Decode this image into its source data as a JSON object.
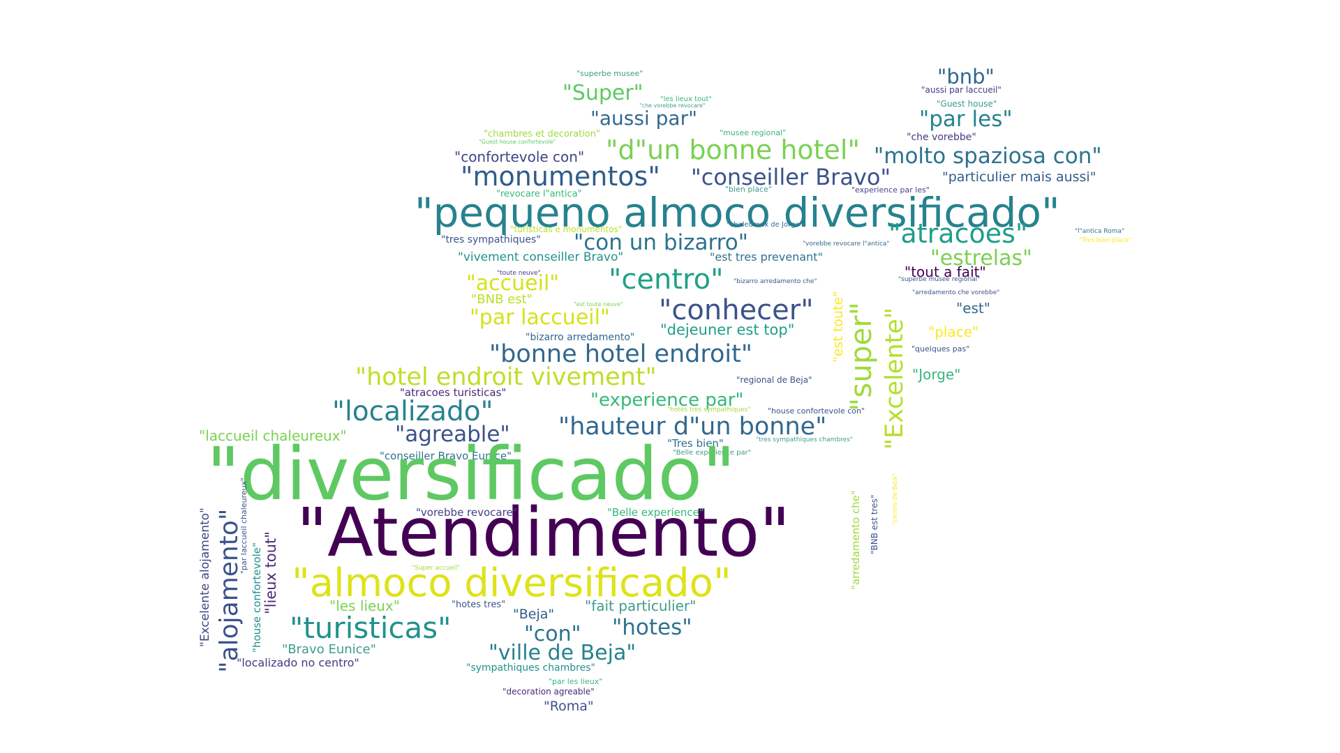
{
  "words": [
    {
      "text": "\"superbe musee\"",
      "color": "#3e9c8a"
    },
    {
      "text": "\"Super\"",
      "color": "#5ec962"
    },
    {
      "text": "\"les lieux tout\"",
      "color": "#35b779"
    },
    {
      "text": "\"che vorebbe revocare\"",
      "color": "#3e9c8a"
    },
    {
      "text": "\"aussi par\"",
      "color": "#31688e"
    },
    {
      "text": "\"chambres et decoration\"",
      "color": "#a0da39"
    },
    {
      "text": "\"musee regional\"",
      "color": "#35b779"
    },
    {
      "text": "\"Guest house confortevole\"",
      "color": "#5ec962"
    },
    {
      "text": "\"d\"un bonne hotel\"",
      "color": "#7ad151"
    },
    {
      "text": "\"confortevole con\"",
      "color": "#414487"
    },
    {
      "text": "\"monumentos\"",
      "color": "#2f5c8a"
    },
    {
      "text": "\"conseiller Bravo\"",
      "color": "#3b528b"
    },
    {
      "text": "\"revocare l\"antica\"",
      "color": "#35b779"
    },
    {
      "text": "\"bien place\"",
      "color": "#3e9c8a"
    },
    {
      "text": "\"pequeno almoco diversificado\"",
      "color": "#26828e"
    },
    {
      "text": "\"turisticas e monumentos\"",
      "color": "#bddf26"
    },
    {
      "text": "\"tres sympathiques\"",
      "color": "#3b528b"
    },
    {
      "text": "\"con un bizarro\"",
      "color": "#2c728e"
    },
    {
      "text": "\"vivement conseiller Bravo\"",
      "color": "#21918c"
    },
    {
      "text": "\"est tres prevenant\"",
      "color": "#2c728e"
    },
    {
      "text": "\"toute neuve\"",
      "color": "#443983"
    },
    {
      "text": "\"accueil\"",
      "color": "#d5e21a"
    },
    {
      "text": "\"centro\"",
      "color": "#1fa187"
    },
    {
      "text": "\"BNB est\"",
      "color": "#bddf26"
    },
    {
      "text": "\"est toute neuve\"",
      "color": "#7ad151"
    },
    {
      "text": "\"par laccueil\"",
      "color": "#d5e21a"
    },
    {
      "text": "\"conhecer\"",
      "color": "#3b528b"
    },
    {
      "text": "\"bizarro arredamento\"",
      "color": "#31688e"
    },
    {
      "text": "\"dejeuner est top\"",
      "color": "#1f9e89"
    },
    {
      "text": "\"bonne hotel endroit\"",
      "color": "#31688e"
    },
    {
      "text": "\"hotel endroit vivement\"",
      "color": "#bddf26"
    },
    {
      "text": "\"atracoes turisticas\"",
      "color": "#482878"
    },
    {
      "text": "\"regional de Beja\"",
      "color": "#3b528b"
    },
    {
      "text": "\"localizado\"",
      "color": "#26828e"
    },
    {
      "text": "\"experience par\"",
      "color": "#35b779"
    },
    {
      "text": "\"hotes tres sympathiques\"",
      "color": "#a0da39"
    },
    {
      "text": "\"house confortevole con\"",
      "color": "#3b528b"
    },
    {
      "text": "\"laccueil chaleureux\"",
      "color": "#7ad151"
    },
    {
      "text": "\"agreable\"",
      "color": "#3b528b"
    },
    {
      "text": "\"hauteur d\"un bonne\"",
      "color": "#31688e"
    },
    {
      "text": "\"Tres bien\"",
      "color": "#2c728e"
    },
    {
      "text": "\"tres sympathiques chambres\"",
      "color": "#3e9c8a"
    },
    {
      "text": "\"Belle experience par\"",
      "color": "#3e9c8a"
    },
    {
      "text": "\"conseiller Bravo Eunice\"",
      "color": "#2c728e"
    },
    {
      "text": "\"diversificado\"",
      "color": "#5ec962"
    },
    {
      "text": "\"Atendimento\"",
      "color": "#440154"
    },
    {
      "text": "\"vorebbe revocare\"",
      "color": "#433e85"
    },
    {
      "text": "\"Belle experience\"",
      "color": "#35b779"
    },
    {
      "text": "\"almoco diversificado\"",
      "color": "#dde318"
    },
    {
      "text": "\"Super accueil\"",
      "color": "#a0da39"
    },
    {
      "text": "\"les lieux\"",
      "color": "#7ad151"
    },
    {
      "text": "\"hotes tres\"",
      "color": "#3b528b"
    },
    {
      "text": "\"fait particulier\"",
      "color": "#3e9c8a"
    },
    {
      "text": "\"Beja\"",
      "color": "#2f5c8a"
    },
    {
      "text": "\"turisticas\"",
      "color": "#21918c"
    },
    {
      "text": "\"con\"",
      "color": "#2c728e"
    },
    {
      "text": "\"hotes\"",
      "color": "#2c728e"
    },
    {
      "text": "\"Bravo Eunice\"",
      "color": "#3e9c8a"
    },
    {
      "text": "\"ville de Beja\"",
      "color": "#26828e"
    },
    {
      "text": "\"localizado no centro\"",
      "color": "#443983"
    },
    {
      "text": "\"sympathiques chambres\"",
      "color": "#21918c"
    },
    {
      "text": "\"par les lieux\"",
      "color": "#35b779"
    },
    {
      "text": "\"decoration agreable\"",
      "color": "#482878"
    },
    {
      "text": "\"Roma\"",
      "color": "#3b528b"
    },
    {
      "text": "\"bnb\"",
      "color": "#31688e"
    },
    {
      "text": "\"aussi par laccueil\"",
      "color": "#443983"
    },
    {
      "text": "\"Guest house\"",
      "color": "#3e9c8a"
    },
    {
      "text": "\"par les\"",
      "color": "#26828e"
    },
    {
      "text": "\"che vorebbe\"",
      "color": "#443983"
    },
    {
      "text": "\"molto spaziosa con\"",
      "color": "#2c728e"
    },
    {
      "text": "\"particulier mais aussi\"",
      "color": "#2f5c8a"
    },
    {
      "text": "\"chaleureux de Jorge\"",
      "color": "#2c728e"
    },
    {
      "text": "\"experience par les\"",
      "color": "#414487"
    },
    {
      "text": "\"atracoes\"",
      "color": "#1f9e89"
    },
    {
      "text": "\"vorebbe revocare l\"antica\"",
      "color": "#31688e"
    },
    {
      "text": "\"l\"antica Roma\"",
      "color": "#2c728e"
    },
    {
      "text": "\"Tres bien place\"",
      "color": "#fde725"
    },
    {
      "text": "\"estrelas\"",
      "color": "#7ad151"
    },
    {
      "text": "\"tout a fait\"",
      "color": "#440154"
    },
    {
      "text": "\"bizarro arredamento che\"",
      "color": "#3b528b"
    },
    {
      "text": "\"superbe musee regional\"",
      "color": "#3b528b"
    },
    {
      "text": "\"arredamento che vorebbe\"",
      "color": "#3b528b"
    },
    {
      "text": "\"est\"",
      "color": "#31688e"
    },
    {
      "text": "\"place\"",
      "color": "#fde725"
    },
    {
      "text": "\"quelques pas\"",
      "color": "#3b528b"
    },
    {
      "text": "\"Jorge\"",
      "color": "#35b779"
    },
    {
      "text": "\"super\"",
      "color": "#a0da39"
    },
    {
      "text": "\"est toute\"",
      "color": "#fde725"
    },
    {
      "text": "\"Excelente\"",
      "color": "#b5de2b"
    },
    {
      "text": "\"alojamento\"",
      "color": "#3b528b"
    },
    {
      "text": "\"Excelente alojamento\"",
      "color": "#414487"
    },
    {
      "text": "\"par laccueil chaleureux\"",
      "color": "#3b528b"
    },
    {
      "text": "\"house confortevole\"",
      "color": "#21918c"
    },
    {
      "text": "\"lieux tout\"",
      "color": "#482878"
    },
    {
      "text": "\"arredamento che\"",
      "color": "#a0da39"
    },
    {
      "text": "\"BNB est tres\"",
      "color": "#3b528b"
    },
    {
      "text": "\"centro de Beja\"",
      "color": "#fde725"
    }
  ]
}
